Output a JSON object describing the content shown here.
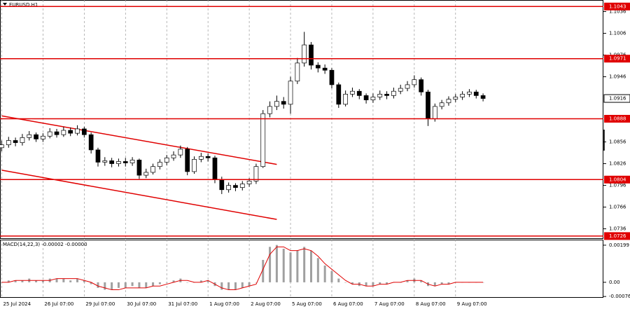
{
  "chart_data": [
    {
      "type": "candlestick",
      "title": "EURUSD,H1",
      "x": [
        0,
        4,
        8,
        12,
        16,
        20,
        24,
        28,
        32,
        36,
        40,
        44,
        48,
        52,
        56,
        60,
        64,
        68,
        72,
        76,
        80,
        84,
        88,
        92,
        96,
        100,
        104,
        108,
        112,
        116,
        120,
        124,
        128,
        132,
        136,
        140,
        144,
        148,
        152,
        156,
        160,
        164,
        168,
        172,
        176,
        180,
        184,
        188,
        192,
        196,
        200,
        204,
        208,
        212,
        216,
        220,
        224,
        228,
        232,
        236,
        240,
        244,
        248,
        252,
        256,
        260,
        264,
        268,
        272,
        276,
        280
      ],
      "open": [
        1.0848,
        1.0852,
        1.0858,
        1.0855,
        1.0862,
        1.0866,
        1.086,
        1.0864,
        1.087,
        1.0866,
        1.0872,
        1.0868,
        1.0874,
        1.0866,
        1.0845,
        1.0828,
        1.083,
        1.0826,
        1.0829,
        1.0827,
        1.0831,
        1.081,
        1.0814,
        1.0822,
        1.0828,
        1.0834,
        1.0838,
        1.0846,
        1.0815,
        1.0832,
        1.0836,
        1.0834,
        1.0804,
        1.079,
        1.0796,
        1.0793,
        1.0798,
        1.0802,
        1.0822,
        1.0895,
        1.0905,
        1.0912,
        1.0908,
        1.094,
        1.0965,
        1.099,
        1.0962,
        1.0958,
        1.0955,
        1.0935,
        1.0908,
        1.0922,
        1.0926,
        1.092,
        1.0914,
        1.0918,
        1.0922,
        1.092,
        1.0926,
        1.093,
        1.0935,
        1.0942,
        1.0925,
        1.0888,
        1.0905,
        1.091,
        1.0915,
        1.0918,
        1.0922,
        1.0925,
        1.092
      ],
      "high": [
        1.0858,
        1.0863,
        1.0862,
        1.0867,
        1.0871,
        1.0869,
        1.0868,
        1.0875,
        1.0874,
        1.0877,
        1.0876,
        1.0879,
        1.0877,
        1.0869,
        1.0848,
        1.0835,
        1.0834,
        1.0833,
        1.0834,
        1.0835,
        1.0833,
        1.0819,
        1.0826,
        1.0832,
        1.0838,
        1.0843,
        1.0851,
        1.0849,
        1.0836,
        1.0841,
        1.084,
        1.0837,
        1.0808,
        1.08,
        1.0799,
        1.0802,
        1.0806,
        1.0826,
        1.09,
        1.0912,
        1.092,
        1.0918,
        1.0946,
        1.0972,
        1.1008,
        1.0994,
        1.0966,
        1.0963,
        1.0958,
        1.0938,
        1.0927,
        1.0931,
        1.0929,
        1.0923,
        1.0923,
        1.0927,
        1.0926,
        1.0931,
        1.0935,
        1.094,
        1.0948,
        1.0945,
        1.0928,
        1.0909,
        1.0914,
        1.0919,
        1.0922,
        1.0926,
        1.0929,
        1.0928,
        1.0923
      ],
      "low": [
        1.0843,
        1.0848,
        1.085,
        1.0851,
        1.0858,
        1.0856,
        1.0856,
        1.0861,
        1.0862,
        1.0863,
        1.0864,
        1.0865,
        1.0862,
        1.084,
        1.0822,
        1.0823,
        1.0821,
        1.0822,
        1.0822,
        1.0823,
        1.0805,
        1.0806,
        1.0811,
        1.0818,
        1.0824,
        1.083,
        1.0834,
        1.081,
        1.0812,
        1.0828,
        1.0829,
        1.0799,
        1.0784,
        1.0786,
        1.0788,
        1.0789,
        1.0794,
        1.0798,
        1.082,
        1.089,
        1.09,
        1.0902,
        1.0895,
        1.0936,
        1.096,
        1.0956,
        1.0952,
        1.095,
        1.093,
        1.0903,
        1.0905,
        1.0918,
        1.0915,
        1.0909,
        1.091,
        1.0914,
        1.0915,
        1.0916,
        1.0922,
        1.0926,
        1.0931,
        1.092,
        1.0878,
        1.0884,
        1.0901,
        1.0906,
        1.0911,
        1.0914,
        1.0918,
        1.0916,
        1.0912
      ],
      "close": [
        1.0852,
        1.0858,
        1.0855,
        1.0862,
        1.0866,
        1.086,
        1.0864,
        1.087,
        1.0866,
        1.0872,
        1.0868,
        1.0874,
        1.0866,
        1.0845,
        1.0828,
        1.083,
        1.0826,
        1.0829,
        1.0827,
        1.0831,
        1.081,
        1.0814,
        1.0822,
        1.0828,
        1.0834,
        1.0838,
        1.0846,
        1.0815,
        1.0832,
        1.0836,
        1.0834,
        1.0804,
        1.079,
        1.0796,
        1.0793,
        1.0798,
        1.0802,
        1.0822,
        1.0895,
        1.0905,
        1.0912,
        1.0908,
        1.094,
        1.0965,
        1.099,
        1.0962,
        1.0958,
        1.0955,
        1.0935,
        1.0908,
        1.0922,
        1.0926,
        1.092,
        1.0914,
        1.0918,
        1.0922,
        1.092,
        1.0926,
        1.093,
        1.0935,
        1.0942,
        1.0925,
        1.0888,
        1.0905,
        1.091,
        1.0915,
        1.0918,
        1.0922,
        1.0925,
        1.092,
        1.0916
      ],
      "xlim": [
        -1,
        350
      ],
      "ylim": [
        1.0723,
        1.1052
      ],
      "yticks": [
        1.1036,
        1.1006,
        1.0976,
        1.0946,
        1.0856,
        1.0826,
        1.0796,
        1.0766,
        1.0736
      ],
      "xticks": [
        {
          "value": 0,
          "label": "25 Jul 2024"
        },
        {
          "value": 24,
          "label": "26 Jul 07:00"
        },
        {
          "value": 48,
          "label": "29 Jul 07:00"
        },
        {
          "value": 72,
          "label": "30 Jul 07:00"
        },
        {
          "value": 96,
          "label": "31 Jul 07:00"
        },
        {
          "value": 120,
          "label": "1 Aug 07:00"
        },
        {
          "value": 144,
          "label": "2 Aug 07:00"
        },
        {
          "value": 168,
          "label": "5 Aug 07:00"
        },
        {
          "value": 192,
          "label": "6 Aug 07:00"
        },
        {
          "value": 216,
          "label": "7 Aug 07:00"
        },
        {
          "value": 240,
          "label": "8 Aug 07:00"
        },
        {
          "value": 264,
          "label": "9 Aug 07:00"
        }
      ],
      "levels": [
        1.1043,
        1.0971,
        1.0888,
        1.0804,
        1.0726
      ],
      "level_color": "#e00000",
      "current_price": 1.0916,
      "trendlines": [
        {
          "x": [
            0,
            160
          ],
          "y": [
            1.0892,
            1.0825
          ]
        },
        {
          "x": [
            0,
            160
          ],
          "y": [
            1.0817,
            1.0749
          ]
        }
      ],
      "grid": true
    },
    {
      "type": "macd",
      "title": "MACD(14,22,3) -0.00002 -0.00000",
      "values": [
        0,
        0.0001,
        0.0001,
        0.0001,
        0.0002,
        0.0001,
        0.0001,
        0.0002,
        0.0002,
        0.0002,
        0.0001,
        0.0002,
        0.0001,
        -0.0001,
        -0.0003,
        -0.0004,
        -0.0004,
        -0.0003,
        -0.0003,
        -0.0002,
        -0.0003,
        -0.0003,
        -0.0002,
        -0.0001,
        0,
        0.0001,
        0.0002,
        0,
        0,
        0.0001,
        0.0001,
        -0.0002,
        -0.0004,
        -0.0004,
        -0.0004,
        -0.0003,
        -0.0002,
        0,
        0.0012,
        0.0019,
        0.002,
        0.0018,
        0.0016,
        0.0017,
        0.0019,
        0.0017,
        0.0013,
        0.0009,
        0.0006,
        0.0002,
        0,
        -0.0001,
        -0.0002,
        -0.0002,
        -0.0002,
        -0.0001,
        -0.0001,
        0,
        0,
        0.0001,
        0.0002,
        0.0001,
        -0.0002,
        -0.0002,
        -0.0001,
        -0.0001,
        0,
        0,
        0,
        0,
        0
      ],
      "signal": [
        0,
        0,
        0.0001,
        0.0001,
        0.0001,
        0.0001,
        0.0001,
        0.0001,
        0.0002,
        0.0002,
        0.0002,
        0.0002,
        0.0001,
        0,
        -0.0002,
        -0.0003,
        -0.0004,
        -0.0004,
        -0.0003,
        -0.0003,
        -0.0003,
        -0.0003,
        -0.0002,
        -0.0002,
        -0.0001,
        0,
        0.0001,
        0.0001,
        0,
        0,
        0.0001,
        -0.0001,
        -0.0003,
        -0.0004,
        -0.0004,
        -0.0003,
        -0.0002,
        -0.0001,
        0.0007,
        0.0015,
        0.0019,
        0.0019,
        0.0017,
        0.0017,
        0.0018,
        0.0017,
        0.0014,
        0.001,
        0.0007,
        0.0004,
        0.0001,
        -0.0001,
        -0.0001,
        -0.0002,
        -0.0002,
        -0.0001,
        -0.0001,
        0,
        0,
        0.0001,
        0.0001,
        0.0001,
        -0.0001,
        -0.0002,
        -0.0001,
        -0.0001,
        0,
        0,
        0,
        0,
        0
      ],
      "signal_color": "#e00000",
      "histogram_color": "#a0a0a0",
      "ylim": [
        -0.00083,
        0.00225
      ],
      "yticks": [
        {
          "value": 0.00199,
          "label": "0.00199"
        },
        {
          "value": 0,
          "label": "0.00"
        },
        {
          "value": -0.00076,
          "label": "-0.00076"
        }
      ]
    }
  ]
}
